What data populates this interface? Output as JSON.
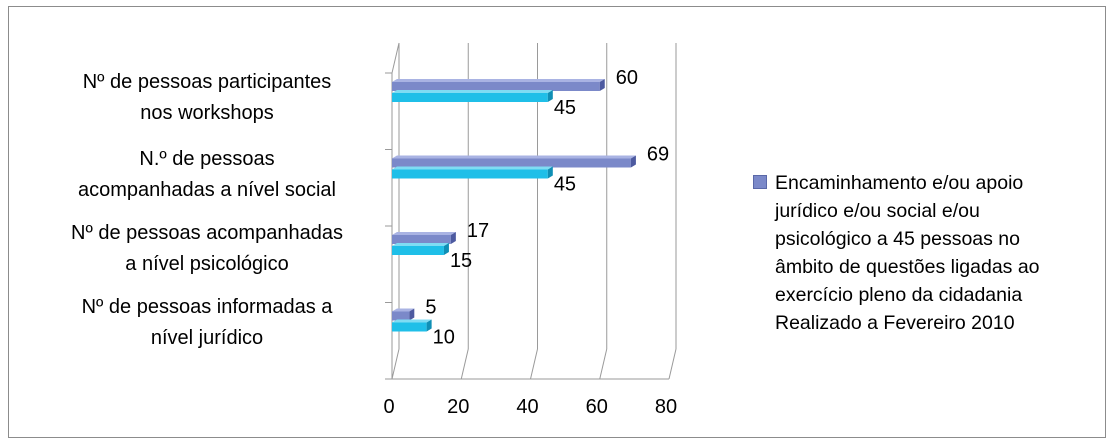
{
  "chart_data": {
    "type": "bar",
    "orientation": "horizontal",
    "categories": [
      "Nº de pessoas participantes\nnos workshops",
      "N.º de pessoas\nacompanhadas a nível social",
      "Nº de pessoas acompanhadas\na nível psicológico",
      "Nº de pessoas informadas a\nnível jurídico"
    ],
    "series": [
      {
        "name": "Encaminhamento e/ou apoio\njurídico e/ou social e/ou\npsicológico a 45 pessoas no\nâmbito de questões ligadas ao\nexercício pleno da cidadania",
        "values": [
          60,
          69,
          17,
          5
        ],
        "color": "#7b89c9"
      },
      {
        "name": "Realizado a Fevereiro 2010",
        "values": [
          45,
          45,
          15,
          10
        ],
        "color": "#1fbfe8"
      }
    ],
    "xlim": [
      0,
      80
    ],
    "x_ticks": [
      "0",
      "20",
      "40",
      "60",
      "80"
    ],
    "grid": true,
    "legend_position": "right"
  }
}
